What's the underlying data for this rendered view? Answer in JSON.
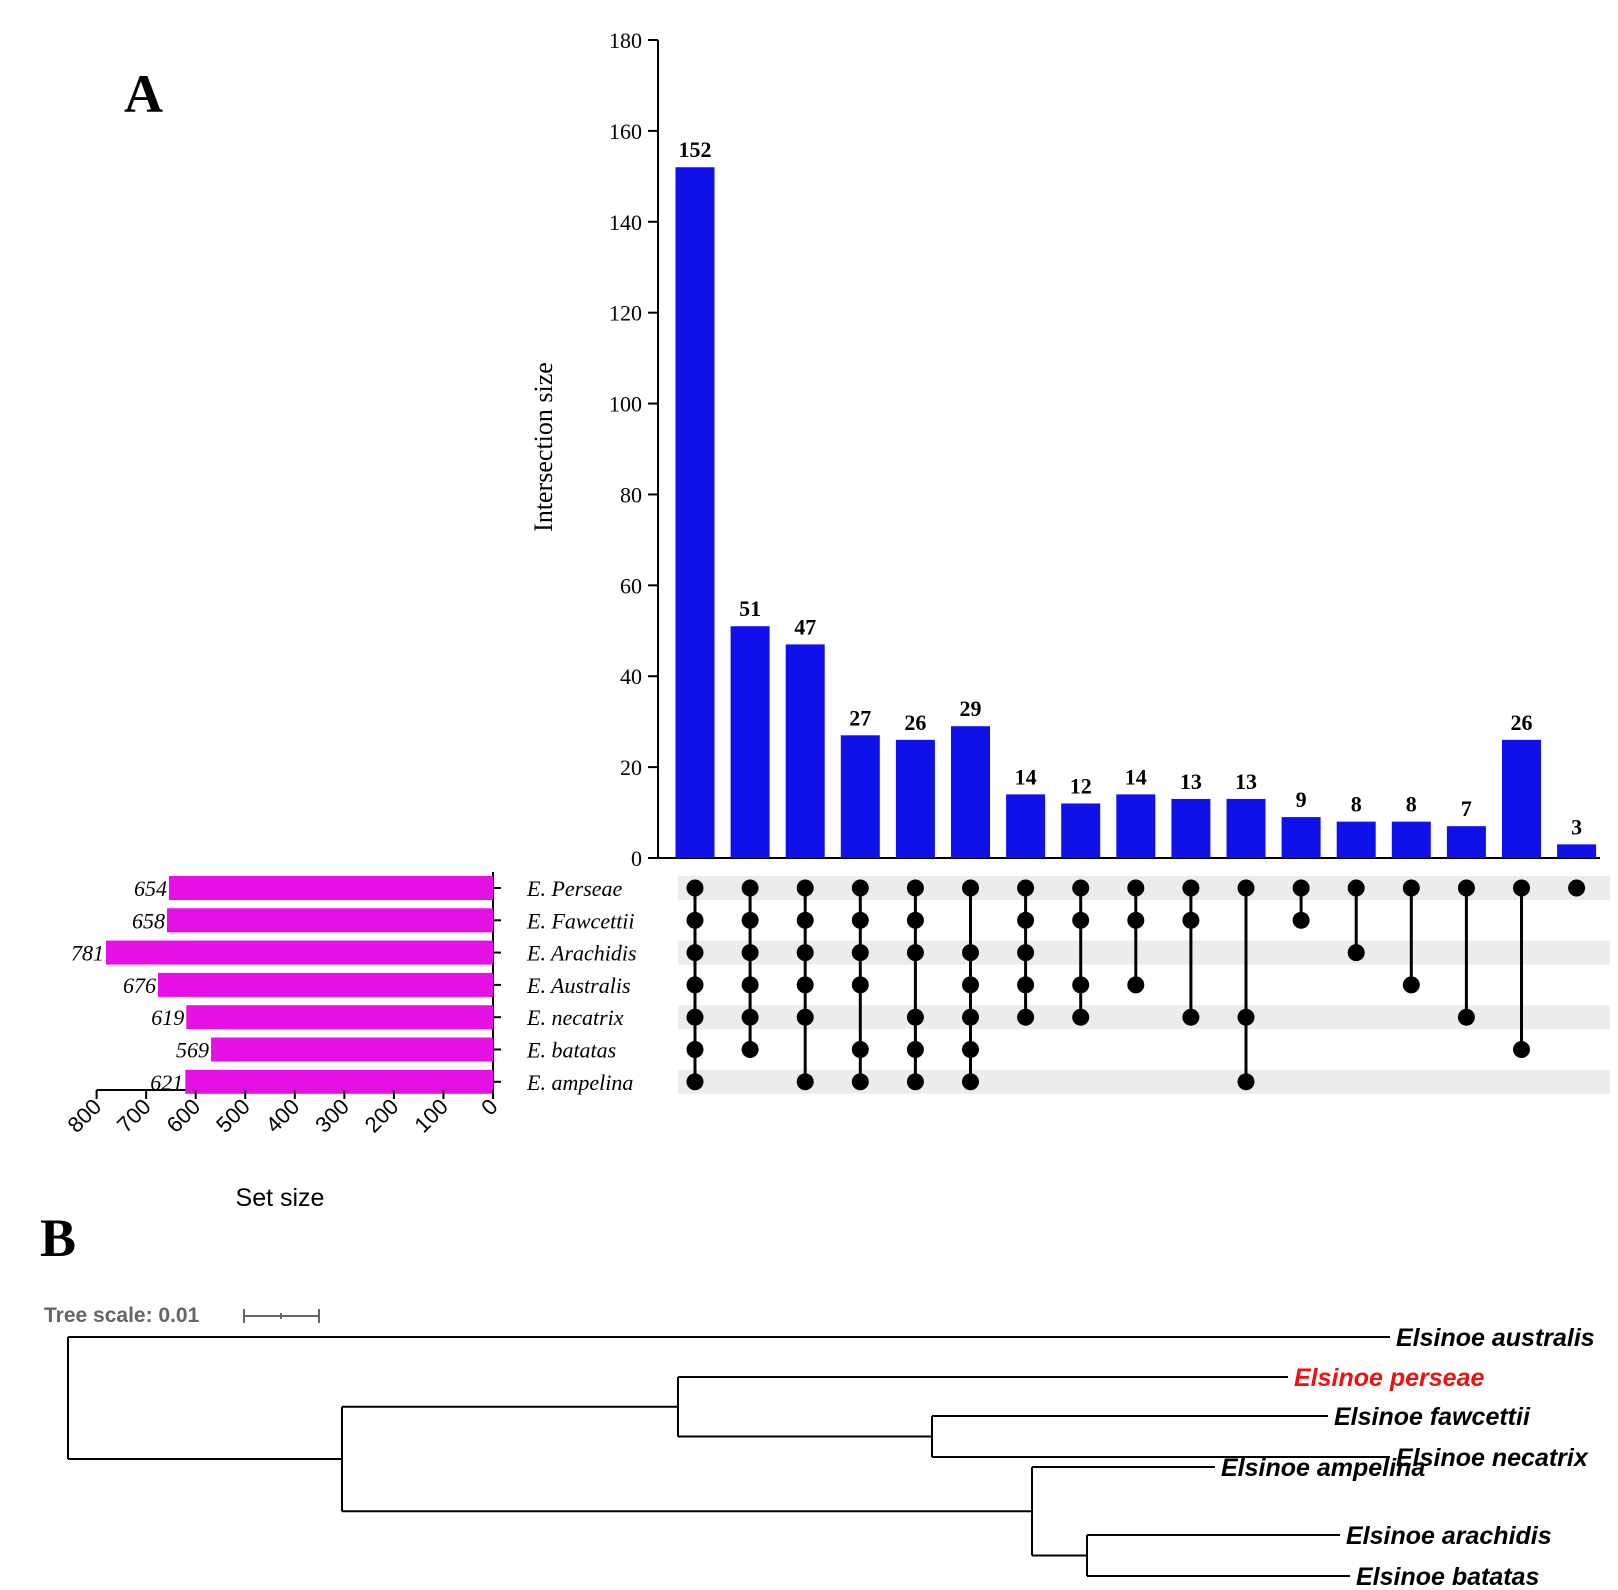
{
  "panel_a": {
    "letter": "A"
  },
  "panel_b": {
    "letter": "B"
  },
  "chart_data": [
    {
      "type": "bar",
      "name": "UpSet plot – intersection sizes",
      "title": "",
      "ylabel": "Intersection size",
      "xlabel": "",
      "ylim": [
        0,
        180
      ],
      "yticks": [
        0,
        20,
        40,
        60,
        80,
        100,
        120,
        140,
        160,
        180
      ],
      "bar_color": "#1010e8",
      "values": [
        152,
        51,
        47,
        27,
        26,
        29,
        14,
        12,
        14,
        13,
        13,
        9,
        8,
        8,
        7,
        26,
        3
      ],
      "value_labels": [
        "152",
        "51",
        "47",
        "27",
        "26",
        "29",
        "14",
        "12",
        "14",
        "13",
        "13",
        "9",
        "8",
        "8",
        "7",
        "26",
        "3"
      ],
      "sets": [
        "E. Perseae",
        "E. Fawcettii",
        "E. Arachidis",
        "E. Australis",
        "E. necatrix",
        "E. batatas",
        "E. ampelina"
      ],
      "membership": [
        [
          0,
          1,
          2,
          3,
          4,
          5,
          6
        ],
        [
          0,
          1,
          2,
          3,
          4,
          5
        ],
        [
          0,
          1,
          2,
          3,
          4,
          6
        ],
        [
          0,
          1,
          2,
          3,
          5,
          6
        ],
        [
          0,
          1,
          2,
          4,
          5,
          6
        ],
        [
          0,
          2,
          3,
          4,
          5,
          6
        ],
        [
          0,
          1,
          2,
          3,
          4
        ],
        [
          0,
          1,
          3,
          4
        ],
        [
          0,
          1,
          3
        ],
        [
          0,
          1,
          4
        ],
        [
          0,
          4,
          6
        ],
        [
          0,
          1
        ],
        [
          0,
          2
        ],
        [
          0,
          3
        ],
        [
          0,
          4
        ],
        [
          0,
          5
        ],
        [
          0
        ]
      ]
    },
    {
      "type": "bar",
      "name": "Set size",
      "orientation": "horizontal",
      "xlabel": "Set size",
      "xlim": [
        800,
        0
      ],
      "xticks": [
        800,
        700,
        600,
        500,
        400,
        300,
        200,
        100,
        0
      ],
      "bar_color": "#e60fe6",
      "categories": [
        "E. Perseae",
        "E. Fawcettii",
        "E. Arachidis",
        "E. Australis",
        "E. necatrix",
        "E. batatas",
        "E. ampelina"
      ],
      "values": [
        654,
        658,
        781,
        676,
        619,
        569,
        621
      ]
    },
    {
      "type": "tree",
      "name": "Phylogenetic tree",
      "scale_label": "Tree scale: 0.01",
      "scale_value": 0.01,
      "highlight_color": "#ee1111",
      "leaves": [
        {
          "label": "Elsinoe australis",
          "highlight": false
        },
        {
          "label": "Elsinoe perseae",
          "highlight": true
        },
        {
          "label": "Elsinoe fawcettii",
          "highlight": false
        },
        {
          "label": "Elsinoe necatrix",
          "highlight": false
        },
        {
          "label": "Elsinoe ampelina",
          "highlight": false
        },
        {
          "label": "Elsinoe arachidis",
          "highlight": false
        },
        {
          "label": "Elsinoe batatas",
          "highlight": false
        }
      ]
    }
  ]
}
